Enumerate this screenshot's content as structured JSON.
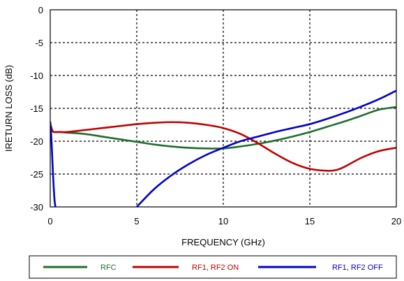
{
  "chart_data": {
    "type": "line",
    "title": "",
    "xlabel": "FREQUENCY (GHz)",
    "ylabel": "IRETURN LOSS (dB)",
    "xlim": [
      0,
      20
    ],
    "ylim": [
      -30,
      0
    ],
    "x_ticks": [
      "0",
      "5",
      "10",
      "15",
      "20"
    ],
    "y_ticks": [
      "0",
      "-5",
      "-10",
      "-15",
      "-20",
      "-25",
      "-30"
    ],
    "grid": true,
    "legend_position": "bottom",
    "series": [
      {
        "name": "RFC",
        "color": "#1e6e2d",
        "x": [
          0,
          0.1,
          0.2,
          0.5,
          1,
          2,
          3,
          4,
          5,
          6,
          7,
          8,
          9,
          10,
          11,
          12,
          13,
          14,
          15,
          16,
          17,
          18,
          19,
          20
        ],
        "y": [
          -17.5,
          -18.3,
          -18.6,
          -18.6,
          -18.7,
          -18.9,
          -19.3,
          -19.7,
          -20.1,
          -20.5,
          -20.8,
          -21.0,
          -21.1,
          -21.1,
          -20.8,
          -20.4,
          -19.9,
          -19.3,
          -18.6,
          -17.8,
          -17.0,
          -16.1,
          -15.2,
          -14.8
        ]
      },
      {
        "name": "RF1, RF2 ON",
        "color": "#c00000",
        "x": [
          0,
          0.1,
          0.2,
          0.5,
          1,
          2,
          3,
          4,
          5,
          6,
          7,
          8,
          9,
          10,
          11,
          12,
          13,
          14,
          15,
          16,
          16.5,
          17,
          18,
          19,
          20
        ],
        "y": [
          -17.3,
          -18.2,
          -18.6,
          -18.6,
          -18.6,
          -18.3,
          -18.0,
          -17.7,
          -17.4,
          -17.2,
          -17.1,
          -17.2,
          -17.5,
          -18.0,
          -18.9,
          -20.3,
          -21.9,
          -23.3,
          -24.2,
          -24.5,
          -24.4,
          -23.9,
          -22.5,
          -21.5,
          -21.0
        ]
      },
      {
        "name": "RF1, RF2 OFF",
        "color": "#0000cc",
        "x": [
          0,
          0.05,
          0.1,
          0.15,
          0.2,
          0.25,
          0.3
        ],
        "y": [
          -17.0,
          -18.8,
          -21.5,
          -24.5,
          -27.0,
          -29.0,
          -30.0
        ],
        "x2": [
          5,
          6,
          7,
          8,
          9,
          10,
          11,
          12,
          13,
          14,
          15,
          16,
          17,
          18,
          19,
          20
        ],
        "y2": [
          -30.0,
          -27.3,
          -25.2,
          -23.5,
          -22.1,
          -21.0,
          -20.0,
          -19.3,
          -18.6,
          -18.0,
          -17.4,
          -16.6,
          -15.7,
          -14.7,
          -13.6,
          -12.3
        ]
      }
    ]
  }
}
